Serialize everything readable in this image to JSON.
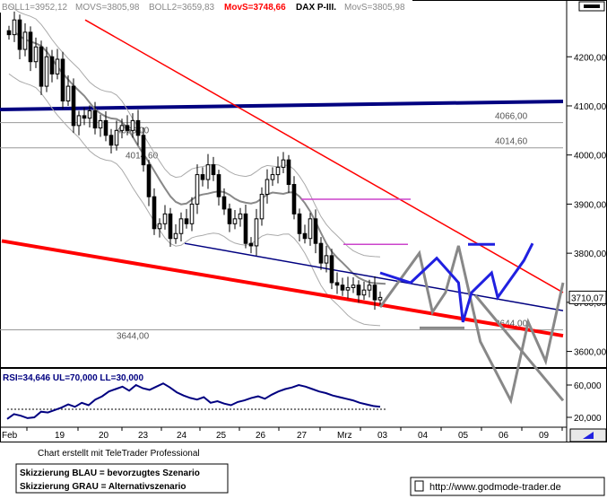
{
  "header": {
    "boll1": "BOLL1=3952,12",
    "movs1": "MOVS=3805,98",
    "boll2": "BOLL2=3659,83",
    "movs_red": "MovS=3748,66",
    "title": "DAX P-III.",
    "movs2": "MovS=3805,98"
  },
  "colors": {
    "red": "#ff0000",
    "blue": "#2020e0",
    "navy": "#000080",
    "gray": "#888888",
    "magenta": "#cc44cc",
    "candle": "#000000"
  },
  "chart_data": [
    {
      "type": "candlestick",
      "title": "DAX P-III.",
      "categories": [
        "Feb",
        "19",
        "20",
        "23",
        "24",
        "25",
        "26",
        "27",
        "Mrz",
        "03",
        "04",
        "05",
        "06",
        "09"
      ],
      "y_ticks": [
        4200,
        4100,
        4000,
        3900,
        3800,
        3700,
        3600
      ],
      "y_tick_labels": [
        "4200,00",
        "4100,00",
        "4000,00",
        "3900,00",
        "3800,00",
        "3700,00",
        "3600,00"
      ],
      "ylim": [
        3570,
        4290
      ],
      "current_value": 3710,
      "current_label": "3710,07",
      "levels": [
        {
          "name": "navy-resistance",
          "value": 4100
        },
        {
          "name": "level-4066",
          "value": 4066,
          "label": "4066,00"
        },
        {
          "name": "level-4014",
          "value": 4014.6,
          "label": "4014,60"
        },
        {
          "name": "level-3644",
          "value": 3644,
          "label": "3644,00"
        }
      ],
      "price_path": [
        4245,
        4275,
        4215,
        4250,
        4190,
        4220,
        4140,
        4200,
        4165,
        4195,
        4110,
        4140,
        4060,
        4080,
        4075,
        4090,
        4055,
        4070,
        4040,
        4020,
        4050,
        4060,
        4050,
        4070,
        4040,
        3980,
        3915,
        3850,
        3860,
        3880,
        3830,
        3840,
        3870,
        3860,
        3900,
        3960,
        3950,
        3980,
        3960,
        3915,
        3890,
        3860,
        3870,
        3880,
        3820,
        3815,
        3870,
        3920,
        3950,
        3960,
        3975,
        3990,
        3940,
        3880,
        3840,
        3830,
        3870,
        3820,
        3780,
        3795,
        3740,
        3735,
        3725,
        3730,
        3735,
        3715,
        3725,
        3735,
        3705,
        3710
      ],
      "blue_scenario": [
        [
          3710,
          3760
        ],
        [
          3745,
          3740
        ],
        [
          3775,
          3790
        ],
        [
          3800,
          3740
        ],
        [
          3805,
          3660
        ],
        [
          3815,
          3720
        ],
        [
          3838,
          3760
        ],
        [
          3845,
          3710
        ],
        [
          3875,
          3785
        ],
        [
          3885,
          3820
        ]
      ],
      "gray_scenario": [
        [
          3710,
          3690
        ],
        [
          3755,
          3800
        ],
        [
          3770,
          3680
        ],
        [
          3785,
          3720
        ],
        [
          3800,
          3815
        ],
        [
          3825,
          3620
        ],
        [
          3860,
          3500
        ],
        [
          3880,
          3660
        ],
        [
          3900,
          3580
        ],
        [
          3920,
          3740
        ]
      ],
      "rsi": {
        "label": "RSI=34,646  UL=70,000  LL=30,000",
        "y_ticks": [
          60,
          20
        ],
        "y_tick_labels": [
          "60,000",
          "20,000"
        ],
        "values": [
          18,
          24,
          22,
          19,
          20,
          27,
          26,
          29,
          32,
          36,
          33,
          38,
          35,
          42,
          46,
          52,
          55,
          58,
          53,
          60,
          56,
          54,
          58,
          62,
          57,
          51,
          47,
          44,
          42,
          45,
          38,
          40,
          37,
          35,
          39,
          41,
          44,
          46,
          43,
          48,
          52,
          55,
          57,
          60,
          58,
          55,
          52,
          50,
          47,
          45,
          43,
          41,
          38,
          36,
          34,
          33
        ]
      }
    }
  ],
  "footer": {
    "credit": "Chart erstellt mit TeleTrader Professional",
    "legend_blue": "Skizzierung BLAU = bevorzugtes Szenario",
    "legend_gray": "Skizzierung GRAU = Alternativszenario",
    "url": "http://www.godmode-trader.de"
  }
}
